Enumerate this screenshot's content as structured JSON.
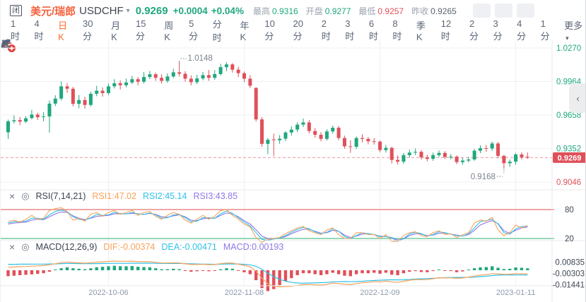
{
  "colors": {
    "up": "#1fa77d",
    "down": "#e0505a",
    "badge_bg": "#e0505a",
    "badge_text": "#ffffff",
    "orange_line": "#f9a25a",
    "cyan_line": "#2fc1e8",
    "purple_line": "#8f77e6",
    "grid": "#f0f0f3",
    "divider": "#e9e9ee",
    "dashed_price": "#f0aab0",
    "rsi_upper": "#e87070",
    "rsi_lower": "#56bf8e",
    "axis_text": "#3f4754",
    "anno_text": "#7b828e"
  },
  "header": {
    "market_status": "闭",
    "pair_name": "美元/瑞郎",
    "symbol": "USDCHF",
    "dropdown_caret": "▾",
    "price": "0.9269",
    "change": "+0.0004",
    "change_pct": "+0.04%",
    "stats": [
      {
        "label": "最高",
        "value": "0.9316",
        "color": "up"
      },
      {
        "label": "开盘",
        "value": "0.9277",
        "color": "up"
      },
      {
        "label": "最低",
        "value": "0.9257",
        "color": "down"
      },
      {
        "label": "昨收",
        "value": "0.9265",
        "color": "neutral"
      }
    ],
    "toolbar_icons": [
      "line-chart",
      "pencil",
      "candlestick",
      "expand",
      "close"
    ]
  },
  "timeframes": {
    "items": [
      "1时",
      "4时",
      "日K",
      "30分",
      "月K",
      "15分",
      "周K",
      "5分",
      "分时",
      "年K",
      "10分",
      "20分",
      "2时",
      "3时",
      "6时",
      "8时",
      "季K",
      "12时",
      "2分",
      "3分",
      "4分",
      "1分"
    ],
    "active": "日K",
    "more_label": "更多",
    "more_caret": "▾"
  },
  "collapse_icon": "‹",
  "rsi_header": {
    "close_icon": "×",
    "settings_icon": "◎",
    "title": "RSI(7,14,21)",
    "labels": [
      {
        "text": "RSI1:47.02",
        "color": "orange_line"
      },
      {
        "text": "RSI2:45.14",
        "color": "cyan_line"
      },
      {
        "text": "RSI3:43.85",
        "color": "purple_line"
      }
    ]
  },
  "macd_header": {
    "close_icon": "×",
    "settings_icon": "◎",
    "title": "MACD(12,26,9)",
    "labels": [
      {
        "text": "DIF:-0.00374",
        "color": "orange_line"
      },
      {
        "text": "DEA:-0.00471",
        "color": "cyan_line"
      },
      {
        "text": "MACD:0.00193",
        "color": "purple_line"
      }
    ]
  },
  "chart_data": {
    "type": "candlestick",
    "title": "USDCHF 日K",
    "x_axis": {
      "labels": [
        "2022-10-06",
        "2022-11-08",
        "2022-12-09",
        "2023-01-11"
      ],
      "label_indices": [
        17,
        40,
        63,
        86
      ]
    },
    "y_axis": {
      "ticks": [
        "1.0270",
        "0.9964",
        "0.9658",
        "0.9352",
        "0.9046"
      ],
      "tick_colors": [
        "up",
        "up",
        "up",
        "up",
        "down"
      ],
      "current_price": "0.9269"
    },
    "annotations": {
      "high": {
        "text": "1.0148",
        "index": 29
      },
      "low": {
        "text": "0.9168",
        "index": 84
      }
    },
    "candles": [
      [
        0.95,
        0.9615,
        0.944,
        0.96
      ],
      [
        0.96,
        0.9655,
        0.958,
        0.961
      ],
      [
        0.9612,
        0.964,
        0.9565,
        0.9598
      ],
      [
        0.9598,
        0.9648,
        0.9585,
        0.9628
      ],
      [
        0.963,
        0.9705,
        0.9618,
        0.9662
      ],
      [
        0.9662,
        0.968,
        0.9612,
        0.9638
      ],
      [
        0.964,
        0.9685,
        0.96,
        0.9645
      ],
      [
        0.9645,
        0.979,
        0.9498,
        0.9762
      ],
      [
        0.9762,
        0.9838,
        0.974,
        0.9808
      ],
      [
        0.9808,
        0.9965,
        0.979,
        0.992
      ],
      [
        0.992,
        0.995,
        0.986,
        0.9898
      ],
      [
        0.9898,
        0.9915,
        0.9738,
        0.976
      ],
      [
        0.976,
        0.984,
        0.972,
        0.9795
      ],
      [
        0.9795,
        0.9825,
        0.9715,
        0.975
      ],
      [
        0.975,
        0.987,
        0.9735,
        0.9852
      ],
      [
        0.9852,
        0.9925,
        0.983,
        0.988
      ],
      [
        0.988,
        0.991,
        0.9825,
        0.9858
      ],
      [
        0.9858,
        0.9945,
        0.984,
        0.992
      ],
      [
        0.992,
        0.9985,
        0.99,
        0.9948
      ],
      [
        0.9948,
        0.9975,
        0.989,
        0.993
      ],
      [
        0.993,
        0.999,
        0.9912,
        0.9955
      ],
      [
        0.9955,
        1.0015,
        0.994,
        0.9985
      ],
      [
        0.9985,
        1.0005,
        0.993,
        0.9962
      ],
      [
        0.9962,
        1.005,
        0.9945,
        1.0005
      ],
      [
        1.0005,
        1.006,
        0.9985,
        1.003
      ],
      [
        1.003,
        1.0045,
        0.997,
        0.9998
      ],
      [
        0.9998,
        1.003,
        0.9945,
        0.997
      ],
      [
        0.997,
        1.0038,
        0.9952,
        1.001
      ],
      [
        1.001,
        1.008,
        0.9995,
        1.0048
      ],
      [
        1.0048,
        1.0148,
        1.001,
        1.0035
      ],
      [
        1.0035,
        1.0058,
        0.9962,
        0.999
      ],
      [
        0.999,
        1.002,
        0.993,
        0.9958
      ],
      [
        0.9958,
        1.0025,
        0.994,
        0.9992
      ],
      [
        0.9992,
        1.0052,
        0.9975,
        1.0022
      ],
      [
        1.0022,
        1.007,
        0.997,
        0.9998
      ],
      [
        0.9998,
        1.0068,
        0.998,
        1.0032
      ],
      [
        1.0032,
        1.0125,
        1.0018,
        1.0095
      ],
      [
        1.0095,
        1.014,
        1.006,
        1.012
      ],
      [
        1.012,
        1.0132,
        1.0045,
        1.0072
      ],
      [
        1.0072,
        1.0098,
        1.0005,
        1.004
      ],
      [
        1.004,
        1.0055,
        0.996,
        0.999
      ],
      [
        0.999,
        1.0022,
        0.9905,
        0.9925
      ],
      [
        0.9905,
        0.9912,
        0.9598,
        0.9618
      ],
      [
        0.9618,
        0.964,
        0.9368,
        0.9395
      ],
      [
        0.9395,
        0.9448,
        0.9302,
        0.9432
      ],
      [
        0.9435,
        0.9488,
        0.9282,
        0.9428
      ],
      [
        0.9428,
        0.9475,
        0.9395,
        0.9442
      ],
      [
        0.9442,
        0.9512,
        0.942,
        0.9498
      ],
      [
        0.9498,
        0.9555,
        0.947,
        0.9525
      ],
      [
        0.9525,
        0.9592,
        0.9502,
        0.957
      ],
      [
        0.957,
        0.9625,
        0.9548,
        0.959
      ],
      [
        0.959,
        0.9612,
        0.949,
        0.9512
      ],
      [
        0.9512,
        0.954,
        0.9452,
        0.9478
      ],
      [
        0.9478,
        0.9502,
        0.9418,
        0.944
      ],
      [
        0.944,
        0.9528,
        0.9425,
        0.9508
      ],
      [
        0.9508,
        0.9562,
        0.9488,
        0.9542
      ],
      [
        0.9542,
        0.9558,
        0.9428,
        0.9448
      ],
      [
        0.9448,
        0.947,
        0.935,
        0.9372
      ],
      [
        0.9372,
        0.9428,
        0.9312,
        0.9368
      ],
      [
        0.9368,
        0.9462,
        0.9348,
        0.9448
      ],
      [
        0.9448,
        0.9482,
        0.9408,
        0.944
      ],
      [
        0.944,
        0.9458,
        0.939,
        0.9418
      ],
      [
        0.9418,
        0.9448,
        0.9388,
        0.9415
      ],
      [
        0.9415,
        0.9425,
        0.9318,
        0.9338
      ],
      [
        0.9338,
        0.9385,
        0.9315,
        0.9358
      ],
      [
        0.9358,
        0.9368,
        0.9215,
        0.9248
      ],
      [
        0.9248,
        0.9288,
        0.9205,
        0.9232
      ],
      [
        0.9232,
        0.9312,
        0.9212,
        0.9292
      ],
      [
        0.9292,
        0.9342,
        0.927,
        0.9315
      ],
      [
        0.9315,
        0.9352,
        0.9292,
        0.9322
      ],
      [
        0.9322,
        0.9338,
        0.9252,
        0.9272
      ],
      [
        0.9272,
        0.9295,
        0.9235,
        0.9258
      ],
      [
        0.9258,
        0.9315,
        0.924,
        0.9292
      ],
      [
        0.9292,
        0.9335,
        0.9275,
        0.9312
      ],
      [
        0.9312,
        0.9328,
        0.9255,
        0.9275
      ],
      [
        0.9275,
        0.9302,
        0.9252,
        0.9278
      ],
      [
        0.9278,
        0.929,
        0.921,
        0.9228
      ],
      [
        0.9228,
        0.9268,
        0.9205,
        0.9242
      ],
      [
        0.9242,
        0.9275,
        0.9225,
        0.9252
      ],
      [
        0.9252,
        0.9348,
        0.924,
        0.9332
      ],
      [
        0.9332,
        0.9382,
        0.931,
        0.9355
      ],
      [
        0.9355,
        0.9385,
        0.9322,
        0.9352
      ],
      [
        0.9352,
        0.9415,
        0.933,
        0.9398
      ],
      [
        0.9398,
        0.9412,
        0.9262,
        0.9285
      ],
      [
        0.9285,
        0.9295,
        0.9168,
        0.9218
      ],
      [
        0.9218,
        0.9252,
        0.9185,
        0.9232
      ],
      [
        0.9232,
        0.9312,
        0.9205,
        0.9298
      ],
      [
        0.9298,
        0.9318,
        0.9252,
        0.9272
      ],
      [
        0.9277,
        0.9316,
        0.9257,
        0.9269
      ]
    ],
    "rsi": {
      "overbought": 80,
      "oversold": 20,
      "rsi1": [
        55,
        58,
        54,
        60,
        68,
        60,
        62,
        78,
        82,
        84,
        76,
        58,
        62,
        56,
        70,
        74,
        66,
        74,
        78,
        70,
        74,
        78,
        68,
        74,
        76,
        66,
        60,
        68,
        74,
        70,
        58,
        52,
        60,
        68,
        60,
        66,
        78,
        80,
        68,
        60,
        50,
        44,
        22,
        12,
        18,
        20,
        22,
        30,
        36,
        42,
        45,
        36,
        32,
        28,
        38,
        42,
        28,
        20,
        20,
        32,
        32,
        28,
        28,
        20,
        28,
        14,
        14,
        26,
        32,
        34,
        26,
        24,
        32,
        36,
        28,
        30,
        22,
        28,
        32,
        52,
        58,
        56,
        64,
        38,
        26,
        32,
        48,
        42,
        47.02
      ],
      "rsi2": [
        52,
        55,
        55,
        56,
        62,
        62,
        60,
        69,
        76,
        79,
        76,
        65,
        60,
        58,
        63,
        70,
        68,
        69,
        74,
        72,
        71,
        74,
        71,
        70,
        73,
        69,
        62,
        63,
        69,
        70,
        63,
        55,
        56,
        63,
        63,
        62,
        71,
        77,
        72,
        63,
        54,
        46,
        32,
        18,
        16,
        19,
        21,
        26,
        33,
        39,
        43,
        40,
        34,
        30,
        33,
        40,
        35,
        24,
        20,
        26,
        32,
        30,
        28,
        24,
        24,
        21,
        14,
        20,
        29,
        33,
        30,
        25,
        28,
        34,
        32,
        29,
        26,
        25,
        30,
        42,
        55,
        57,
        60,
        50,
        32,
        29,
        40,
        45,
        45.14
      ],
      "rsi3": [
        50,
        52,
        53,
        54,
        58,
        60,
        59,
        65,
        71,
        75,
        74,
        67,
        62,
        59,
        62,
        66,
        67,
        68,
        71,
        71,
        71,
        72,
        71,
        70,
        72,
        70,
        65,
        64,
        67,
        69,
        65,
        58,
        57,
        61,
        62,
        62,
        68,
        73,
        71,
        65,
        57,
        50,
        38,
        25,
        20,
        20,
        21,
        24,
        30,
        35,
        39,
        39,
        35,
        31,
        32,
        37,
        35,
        27,
        22,
        25,
        29,
        30,
        28,
        25,
        24,
        22,
        17,
        19,
        26,
        30,
        29,
        26,
        27,
        31,
        31,
        29,
        27,
        25,
        28,
        37,
        48,
        53,
        57,
        51,
        36,
        31,
        37,
        42,
        43.85
      ]
    },
    "macd": {
      "ticks": [
        "0.00835",
        "-0.00303",
        "-0.01441"
      ],
      "hist": [
        -0.006,
        -0.0055,
        -0.005,
        -0.0046,
        -0.0042,
        -0.0036,
        -0.003,
        -0.0015,
        0.0005,
        0.002,
        0.003,
        0.002,
        0.0015,
        0.001,
        0.002,
        0.003,
        0.0035,
        0.004,
        0.0045,
        0.004,
        0.004,
        0.0042,
        0.0035,
        0.0032,
        0.003,
        0.002,
        0.001,
        0.001,
        0.0015,
        0.001,
        -0.0005,
        -0.0015,
        -0.001,
        -0.0005,
        -0.001,
        -0.0005,
        0.001,
        0.002,
        0.0015,
        -0.0005,
        -0.002,
        -0.004,
        -0.01,
        -0.018,
        -0.021,
        -0.019,
        -0.015,
        -0.011,
        -0.008,
        -0.005,
        -0.003,
        -0.003,
        -0.004,
        -0.005,
        -0.004,
        -0.0025,
        -0.004,
        -0.0055,
        -0.006,
        -0.004,
        -0.003,
        -0.003,
        -0.0025,
        -0.0035,
        -0.0025,
        -0.0045,
        -0.005,
        -0.003,
        -0.0015,
        -0.0008,
        -0.0018,
        -0.002,
        -0.0008,
        0.0005,
        -0.0005,
        -0.0008,
        -0.002,
        -0.0012,
        0.0005,
        0.002,
        0.003,
        0.0032,
        0.004,
        0.0025,
        0.0012,
        0.0015,
        0.0028,
        0.0025,
        0.00193
      ],
      "dea": [
        0.006,
        0.006,
        0.0061,
        0.0061,
        0.0062,
        0.0062,
        0.0062,
        0.0063,
        0.0064,
        0.0066,
        0.0068,
        0.0068,
        0.0067,
        0.0066,
        0.0066,
        0.0067,
        0.0068,
        0.0069,
        0.007,
        0.007,
        0.007,
        0.0071,
        0.0071,
        0.0071,
        0.0071,
        0.007,
        0.0069,
        0.0068,
        0.0068,
        0.0068,
        0.0067,
        0.0065,
        0.0063,
        0.0062,
        0.0061,
        0.006,
        0.0061,
        0.0063,
        0.0064,
        0.0063,
        0.006,
        0.0055,
        0.004,
        0.001,
        -0.003,
        -0.0065,
        -0.0092,
        -0.011,
        -0.0122,
        -0.0128,
        -0.013,
        -0.0129,
        -0.0127,
        -0.0125,
        -0.0122,
        -0.0118,
        -0.0115,
        -0.0114,
        -0.0115,
        -0.0114,
        -0.0111,
        -0.0107,
        -0.0103,
        -0.01,
        -0.0097,
        -0.0096,
        -0.0097,
        -0.0096,
        -0.0093,
        -0.0089,
        -0.0086,
        -0.0084,
        -0.0081,
        -0.0078,
        -0.0075,
        -0.0073,
        -0.0072,
        -0.0072,
        -0.0071,
        -0.0069,
        -0.0065,
        -0.006,
        -0.0054,
        -0.0049,
        -0.0047,
        -0.0047,
        -0.0048,
        -0.0048,
        -0.00471
      ]
    }
  }
}
